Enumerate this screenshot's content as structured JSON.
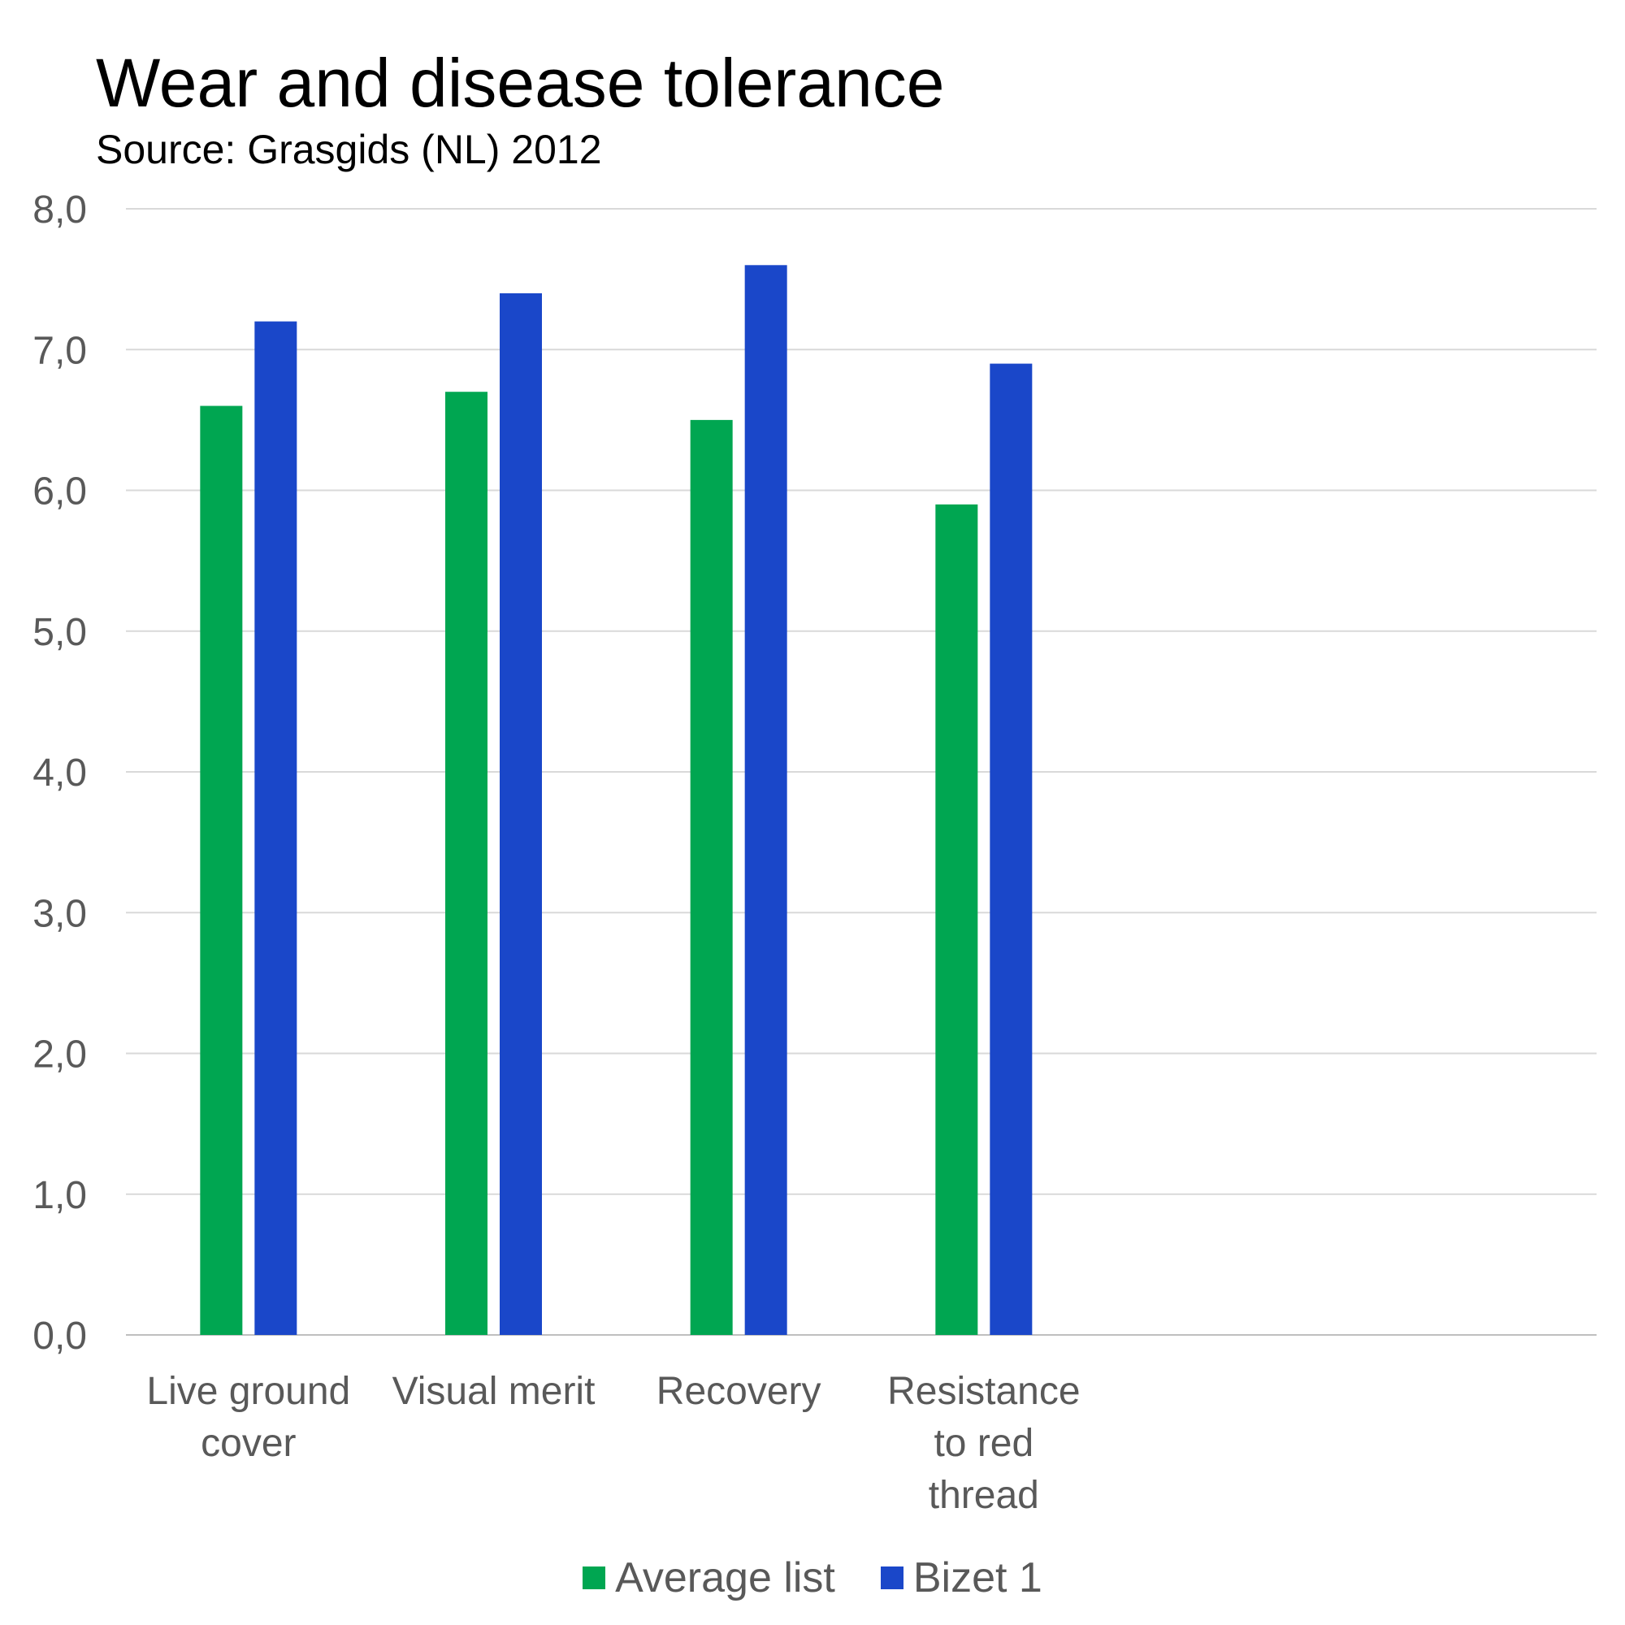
{
  "chart_data": {
    "type": "bar",
    "title": "Wear and disease tolerance",
    "subtitle": "Source: Grasgids (NL) 2012",
    "categories": [
      [
        "Live ground",
        "cover"
      ],
      [
        "Visual merit"
      ],
      [
        "Recovery"
      ],
      [
        "Resistance",
        "to red",
        "thread"
      ],
      [],
      []
    ],
    "series": [
      {
        "name": "Average list",
        "color": "#00A651",
        "values": [
          6.6,
          6.7,
          6.5,
          5.9,
          null,
          null
        ]
      },
      {
        "name": "Bizet 1",
        "color": "#1A47C9",
        "values": [
          7.2,
          7.4,
          7.6,
          6.9,
          null,
          null
        ]
      }
    ],
    "yticks": [
      "0,0",
      "1,0",
      "2,0",
      "3,0",
      "4,0",
      "5,0",
      "6,0",
      "7,0",
      "8,0"
    ],
    "ylim": [
      0,
      8
    ],
    "grid": true,
    "legend_position": "bottom"
  }
}
